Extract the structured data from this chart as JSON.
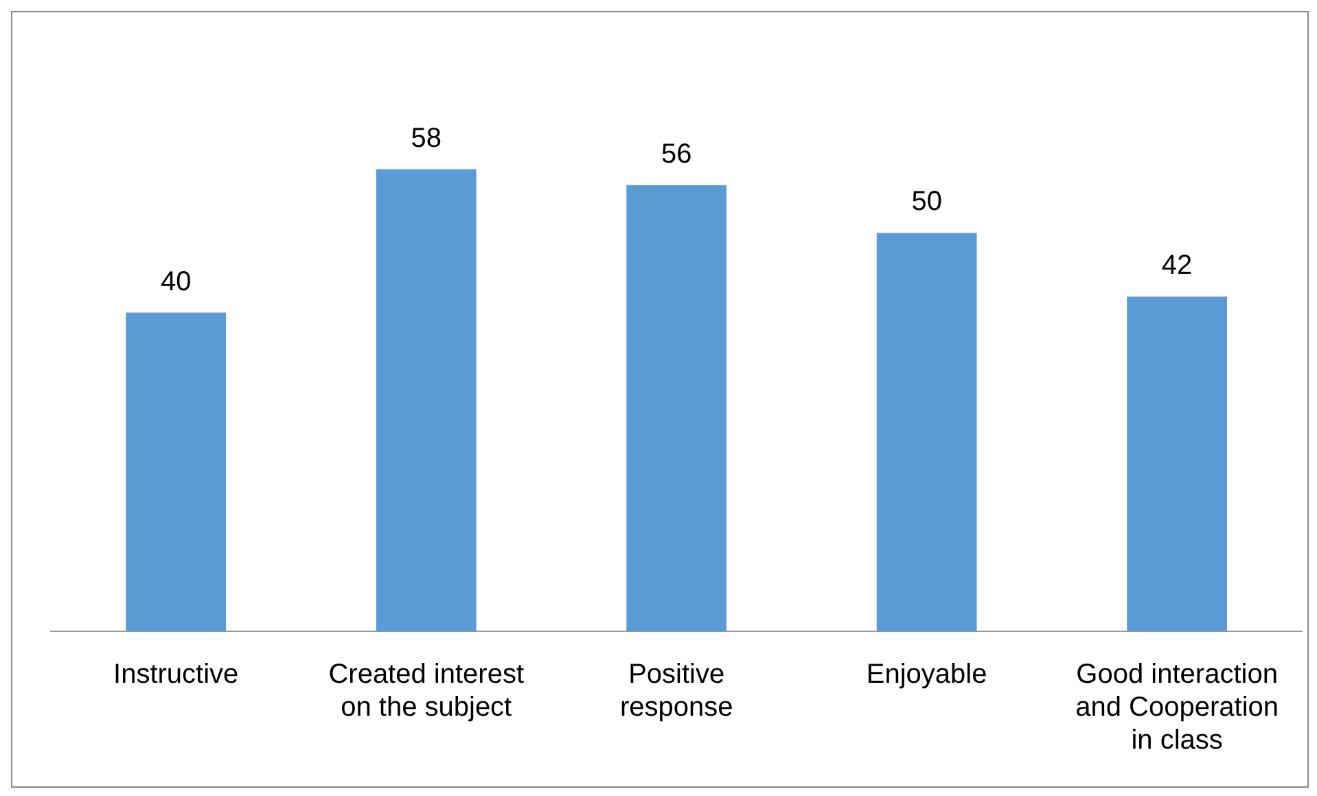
{
  "chart_data": {
    "type": "bar",
    "categories": [
      "Instructive",
      "Created interest on the subject",
      "Positive response",
      "Enjoyable",
      "Good interaction and Cooperation in class"
    ],
    "values": [
      40,
      58,
      56,
      50,
      42
    ],
    "color": "#5b9bd5",
    "data_labels": true,
    "grid": false,
    "legend": false
  }
}
